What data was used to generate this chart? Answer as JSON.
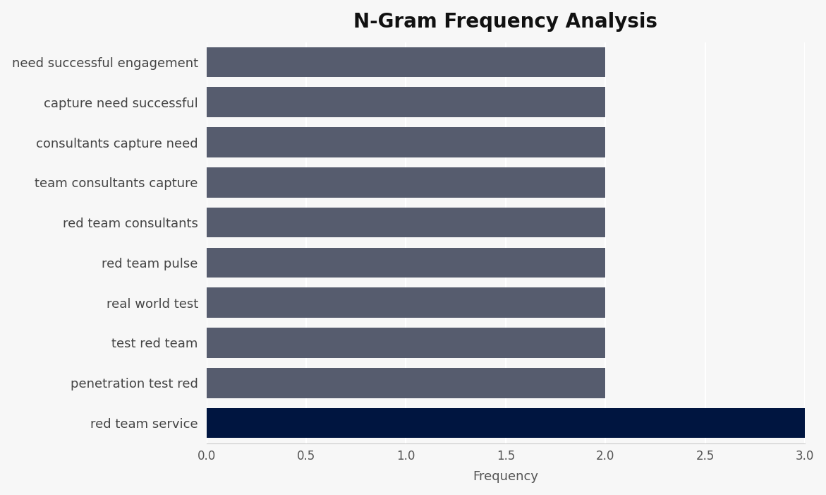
{
  "title": "N-Gram Frequency Analysis",
  "xlabel": "Frequency",
  "categories": [
    "need successful engagement",
    "capture need successful",
    "consultants capture need",
    "team consultants capture",
    "red team consultants",
    "red team pulse",
    "real world test",
    "test red team",
    "penetration test red",
    "red team service"
  ],
  "values": [
    2,
    2,
    2,
    2,
    2,
    2,
    2,
    2,
    2,
    3
  ],
  "bar_colors": [
    "#565c6e",
    "#565c6e",
    "#565c6e",
    "#565c6e",
    "#565c6e",
    "#565c6e",
    "#565c6e",
    "#565c6e",
    "#565c6e",
    "#001540"
  ],
  "xlim": [
    0,
    3.0
  ],
  "xticks": [
    0.0,
    0.5,
    1.0,
    1.5,
    2.0,
    2.5,
    3.0
  ],
  "figure_bg": "#f7f7f7",
  "axes_bg": "#f7f7f7",
  "title_fontsize": 20,
  "label_fontsize": 13,
  "tick_fontsize": 12,
  "bar_height": 0.75
}
